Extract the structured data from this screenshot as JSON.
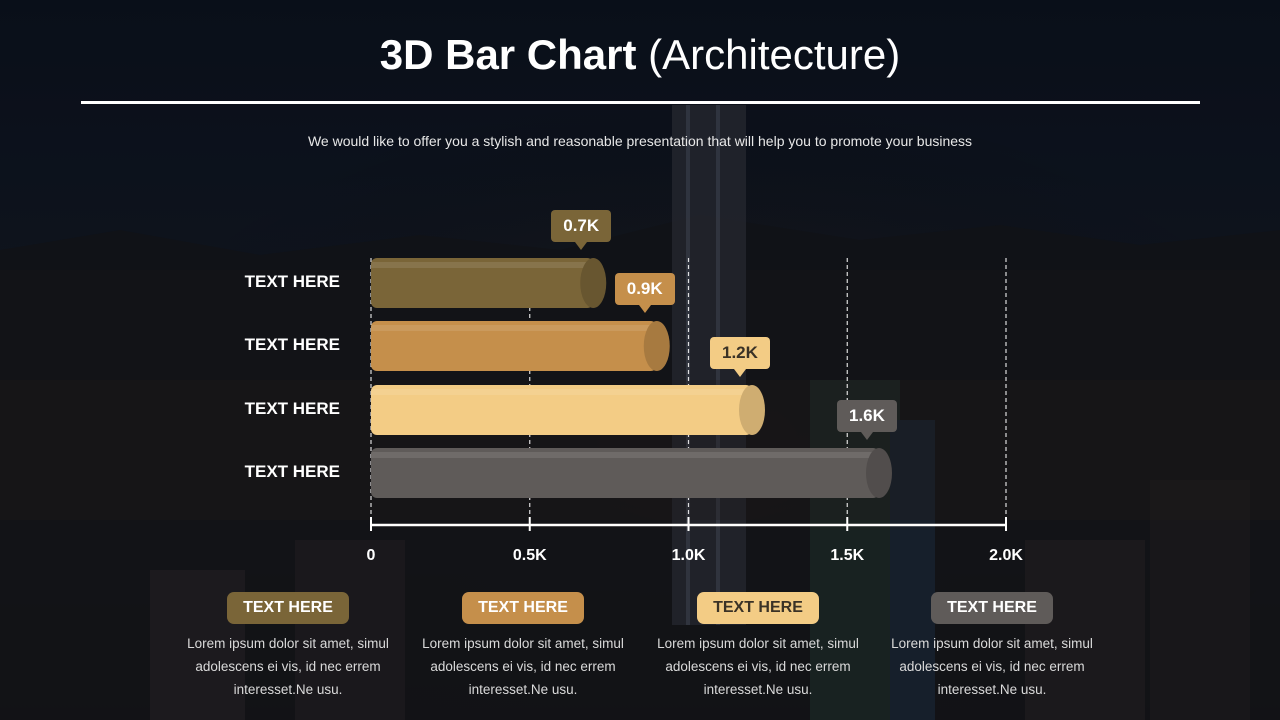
{
  "title": {
    "bold": "3D Bar Chart",
    "light": "(Architecture)"
  },
  "subtitle": "We would like to offer you a stylish and reasonable presentation that will help you to promote your business",
  "colors": {
    "bar1": "#7a6538",
    "bar2": "#c58f4b",
    "bar3": "#f3cc85",
    "bar4": "#5f5b59",
    "text_light": "#ffffff",
    "text_dark": "#3a3226"
  },
  "chart_data": {
    "type": "bar",
    "orientation": "horizontal",
    "categories": [
      "TEXT HERE",
      "TEXT HERE",
      "TEXT HERE",
      "TEXT HERE"
    ],
    "values": [
      0.7,
      0.9,
      1.2,
      1.6
    ],
    "value_labels": [
      "0.7K",
      "0.9K",
      "1.2K",
      "1.6K"
    ],
    "xlim": [
      0,
      2.0
    ],
    "xticks": [
      0,
      0.5,
      1.0,
      1.5,
      2.0
    ],
    "xtick_labels": [
      "0",
      "0.5K",
      "1.0K",
      "1.5K",
      "2.0K"
    ],
    "grid": true
  },
  "cards": [
    {
      "label": "TEXT HERE",
      "text": "Lorem ipsum dolor sit amet, simul adolescens ei vis, id nec errem interesset.Ne usu."
    },
    {
      "label": "TEXT HERE",
      "text": "Lorem ipsum dolor sit amet, simul adolescens ei vis, id nec errem interesset.Ne usu."
    },
    {
      "label": "TEXT HERE",
      "text": "Lorem ipsum dolor sit amet, simul adolescens ei vis, id nec errem interesset.Ne usu."
    },
    {
      "label": "TEXT HERE",
      "text": "Lorem ipsum dolor sit amet, simul adolescens ei vis, id nec errem interesset.Ne usu."
    }
  ]
}
